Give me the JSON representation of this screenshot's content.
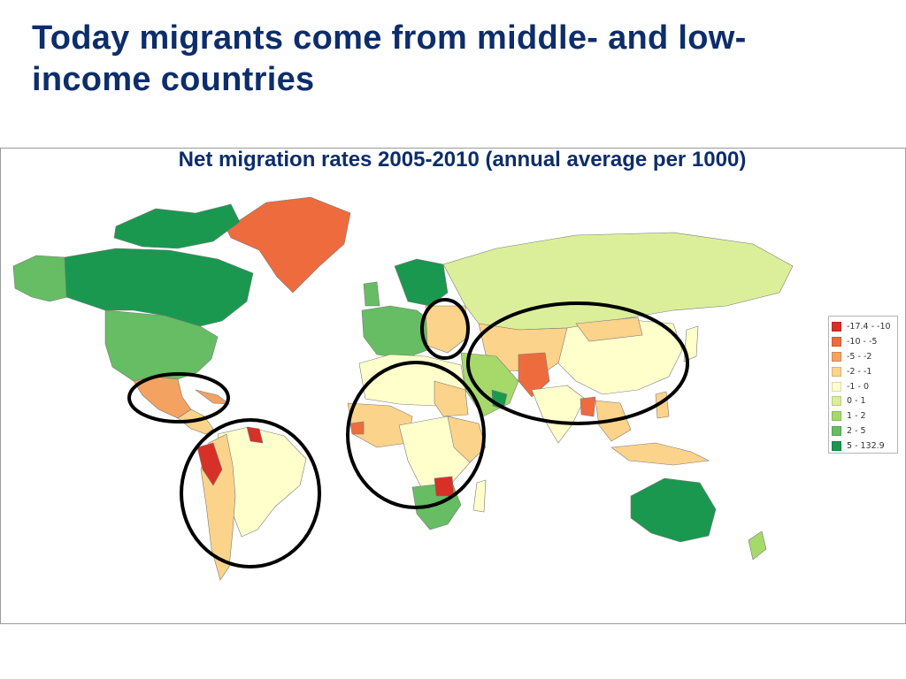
{
  "slide": {
    "title": "Today migrants come from middle- and low-income countries"
  },
  "map": {
    "title": "Net migration rates 2005-2010 (annual average per 1000)",
    "legend": [
      {
        "label": "-17.4 - -10",
        "color": "#d73027"
      },
      {
        "label": "-10 - -5",
        "color": "#ee6b3e"
      },
      {
        "label": "-5 - -2",
        "color": "#f4a262"
      },
      {
        "label": "-2 - -1",
        "color": "#fcd38a"
      },
      {
        "label": "-1 - 0",
        "color": "#ffffcc"
      },
      {
        "label": "0 - 1",
        "color": "#dbef9a"
      },
      {
        "label": "1 - 2",
        "color": "#a6d96a"
      },
      {
        "label": "2 - 5",
        "color": "#66bd63"
      },
      {
        "label": "5 - 132.9",
        "color": "#1a9850"
      }
    ],
    "highlighted_regions": [
      "Mexico and Central America",
      "South America",
      "Africa",
      "Eastern Europe",
      "Asia"
    ]
  }
}
